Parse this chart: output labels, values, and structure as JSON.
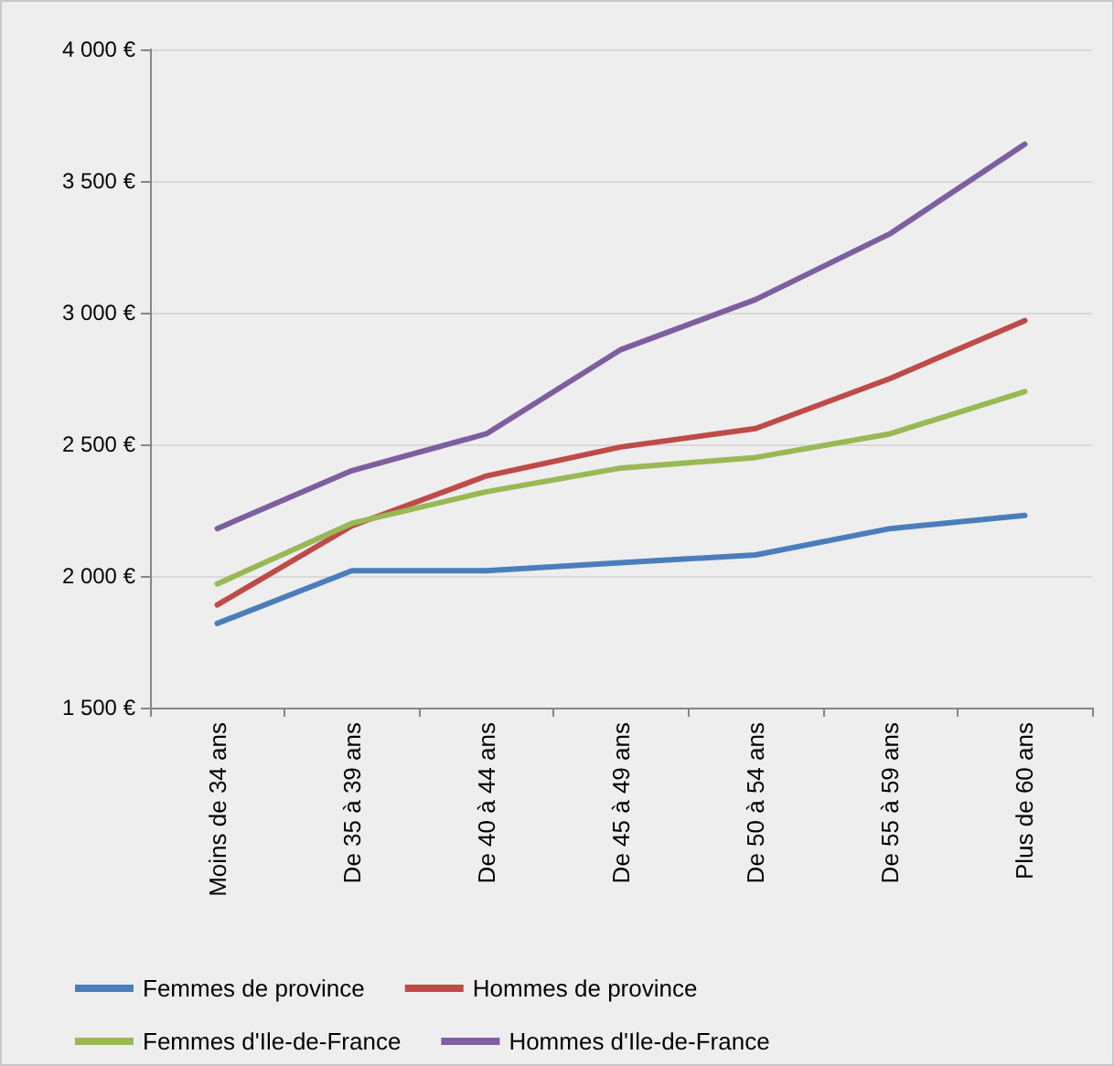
{
  "chart_data": {
    "type": "line",
    "categories": [
      "Moins de 34 ans",
      "De 35 à 39 ans",
      "De 40 à 44 ans",
      "De 45 à 49 ans",
      "De 50 à 54 ans",
      "De 55 à 59 ans",
      "Plus de 60 ans"
    ],
    "series": [
      {
        "name": "Femmes de province",
        "color": "#4a7ebb",
        "values": [
          1820,
          2020,
          2020,
          2050,
          2080,
          2180,
          2230
        ]
      },
      {
        "name": "Hommes de province",
        "color": "#be4b48",
        "values": [
          1890,
          2190,
          2380,
          2490,
          2560,
          2750,
          2970
        ]
      },
      {
        "name": "Femmes d'Ile-de-France",
        "color": "#98b954",
        "values": [
          1970,
          2200,
          2320,
          2410,
          2450,
          2540,
          2700
        ]
      },
      {
        "name": "Hommes d'Ile-de-France",
        "color": "#7d5fa0",
        "values": [
          2180,
          2400,
          2540,
          2860,
          3050,
          3300,
          3640
        ]
      }
    ],
    "ylim": [
      1500,
      4000
    ],
    "yticks": [
      {
        "value": 1500,
        "label": "1 500 €"
      },
      {
        "value": 2000,
        "label": "2 000 €"
      },
      {
        "value": 2500,
        "label": "2 500 €"
      },
      {
        "value": 3000,
        "label": "3 000 €"
      },
      {
        "value": 3500,
        "label": "3 500 €"
      },
      {
        "value": 4000,
        "label": "4 000 €"
      }
    ],
    "grid": "y",
    "legend": "bottom",
    "marker": "none",
    "line_style": "solid"
  }
}
